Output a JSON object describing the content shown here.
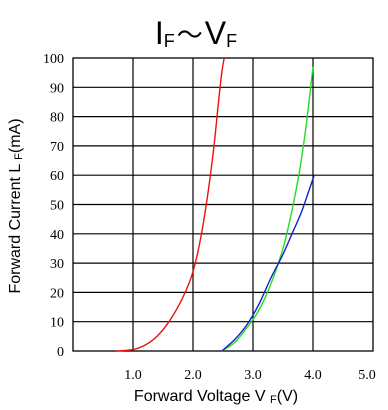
{
  "chart_data": {
    "type": "line",
    "title": {
      "main_i": "I",
      "sub_f1": "F",
      "tilde": "〜",
      "main_v": "V",
      "sub_f2": "F"
    },
    "xlabel": {
      "text": "Forward Voltage V ",
      "sub": "F",
      "unit": "(V)"
    },
    "ylabel": {
      "text": "Forward Current L ",
      "sub": "F",
      "unit": "(mA)"
    },
    "xlim": [
      0,
      5
    ],
    "ylim": [
      0,
      100
    ],
    "x_tick_labels": [
      "1.0",
      "2.0",
      "3.0",
      "4.0",
      "5.0"
    ],
    "x_tick_values": [
      1,
      2,
      3,
      4,
      5
    ],
    "y_tick_labels": [
      "0",
      "10",
      "20",
      "30",
      "40",
      "50",
      "60",
      "70",
      "80",
      "90",
      "100"
    ],
    "y_tick_values": [
      0,
      10,
      20,
      30,
      40,
      50,
      60,
      70,
      80,
      90,
      100
    ],
    "grid": true,
    "series": [
      {
        "color": "#ee1111",
        "x": [
          0.72,
          1.0,
          1.2,
          1.4,
          1.6,
          1.8,
          1.95,
          2.05,
          2.15,
          2.25,
          2.35,
          2.42,
          2.48,
          2.52
        ],
        "y": [
          0,
          0.5,
          2,
          5,
          10,
          17,
          24,
          31,
          41,
          54,
          70,
          84,
          95,
          100
        ]
      },
      {
        "color": "#22dd22",
        "x": [
          2.48,
          2.7,
          2.9,
          3.1,
          3.3,
          3.5,
          3.65,
          3.78,
          3.88,
          3.95,
          4.0
        ],
        "y": [
          0,
          3,
          8,
          14,
          23,
          35,
          48,
          62,
          76,
          88,
          97
        ]
      },
      {
        "color": "#1122cc",
        "x": [
          2.48,
          2.7,
          2.9,
          3.1,
          3.3,
          3.5,
          3.65,
          3.8,
          3.92,
          4.02
        ],
        "y": [
          0,
          4,
          9,
          16,
          25,
          33,
          40,
          47,
          54,
          60
        ]
      }
    ]
  }
}
